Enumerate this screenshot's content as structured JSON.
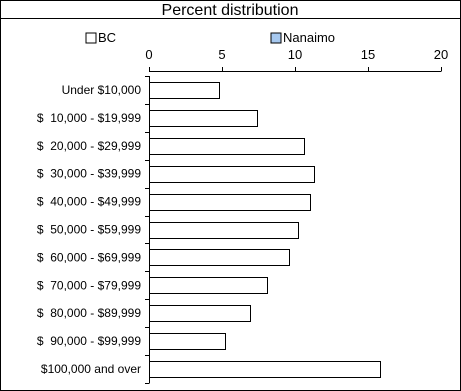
{
  "chart_data": {
    "type": "bar",
    "orientation": "horizontal",
    "title": "Percent distribution",
    "xlabel": "",
    "ylabel": "",
    "xlim": [
      0,
      20
    ],
    "x_ticks": [
      0,
      5,
      10,
      15,
      20
    ],
    "grid": false,
    "legend": {
      "placement": "top",
      "entries": [
        {
          "name": "BC",
          "color": "#ffffff"
        },
        {
          "name": "Nanaimo",
          "color": "#a6c8ef"
        }
      ]
    },
    "categories": [
      "Under $10,000",
      "$  10,000 - $19,999",
      "$  20,000 - $29,999",
      "$  30,000 - $39,999",
      "$  40,000 - $49,999",
      "$  50,000 - $59,999",
      "$  60,000 - $69,999",
      "$  70,000 - $79,999",
      "$  80,000 - $89,999",
      "$  90,000 - $99,999",
      "$100,000 and over"
    ],
    "series": [
      {
        "name": "BC",
        "color": "#ffffff",
        "values": [
          4.8,
          7.4,
          10.6,
          11.3,
          11.0,
          10.2,
          9.6,
          8.1,
          6.9,
          5.2,
          15.8
        ]
      }
    ]
  }
}
